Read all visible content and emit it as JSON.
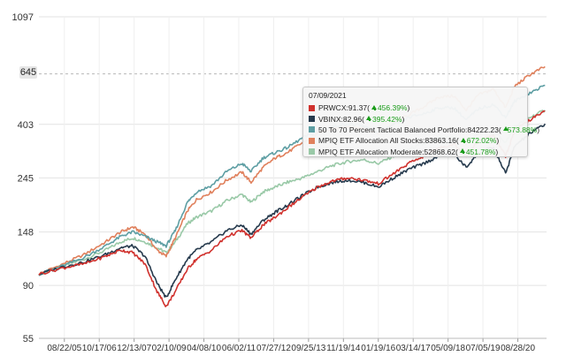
{
  "chart_data": {
    "type": "line",
    "y_scale": "log",
    "ylim": [
      55,
      1097
    ],
    "y_ticks": [
      "1097",
      "645",
      "403",
      "245",
      "148",
      "90",
      "55"
    ],
    "x_ticks": [
      "08/22/05",
      "10/17/06",
      "12/13/07",
      "02/10/09",
      "04/08/10",
      "06/02/11",
      "07/27/12",
      "09/25/13",
      "11/19/14",
      "01/19/16",
      "03/14/17",
      "05/09/18",
      "07/05/19",
      "08/28/20"
    ],
    "grid": true,
    "hover_value": "645",
    "tooltip": {
      "date": "07/09/2021",
      "rows": [
        {
          "name": "PRWCX",
          "value": "91.37",
          "change": "456.39%",
          "color": "#d0312d"
        },
        {
          "name": "VBINX",
          "value": "82.96",
          "change": "395.42%",
          "color": "#263a4d"
        },
        {
          "name": "50 To 70 Percent Tactical Balanced Portfolio",
          "value": "84222.23",
          "change": "573.88%",
          "color": "#5d9ea3"
        },
        {
          "name": "MPIQ ETF Allocation All Stocks",
          "value": "83863.16",
          "change": "672.02%",
          "color": "#e0805c"
        },
        {
          "name": "MPIQ ETF Allocation Moderate",
          "value": "52868.62",
          "change": "451.78%",
          "color": "#99c9a7"
        }
      ]
    },
    "series": [
      {
        "color": "#99c9a7",
        "points": [
          [
            2004.8,
            100
          ],
          [
            2005.6,
            108
          ],
          [
            2006.3,
            115
          ],
          [
            2007.0,
            125
          ],
          [
            2007.5,
            135
          ],
          [
            2007.9,
            140
          ],
          [
            2008.3,
            135
          ],
          [
            2008.7,
            128
          ],
          [
            2009.0,
            122
          ],
          [
            2009.3,
            135
          ],
          [
            2009.7,
            160
          ],
          [
            2010.0,
            170
          ],
          [
            2010.5,
            180
          ],
          [
            2011.0,
            198
          ],
          [
            2011.5,
            210
          ],
          [
            2011.8,
            195
          ],
          [
            2012.2,
            215
          ],
          [
            2012.6,
            225
          ],
          [
            2013.0,
            235
          ],
          [
            2013.5,
            245
          ],
          [
            2014.0,
            260
          ],
          [
            2014.5,
            275
          ],
          [
            2015.0,
            285
          ],
          [
            2015.5,
            290
          ],
          [
            2016.0,
            280
          ],
          [
            2016.5,
            300
          ],
          [
            2017.0,
            320
          ],
          [
            2017.5,
            335
          ],
          [
            2018.0,
            355
          ],
          [
            2018.5,
            360
          ],
          [
            2018.9,
            335
          ],
          [
            2019.3,
            370
          ],
          [
            2019.8,
            385
          ],
          [
            2020.2,
            340
          ],
          [
            2020.5,
            395
          ],
          [
            2021.0,
            430
          ],
          [
            2021.5,
            460
          ]
        ]
      },
      {
        "color": "#e0805c",
        "points": [
          [
            2004.8,
            100
          ],
          [
            2005.6,
            110
          ],
          [
            2006.3,
            120
          ],
          [
            2007.0,
            135
          ],
          [
            2007.5,
            148
          ],
          [
            2007.9,
            155
          ],
          [
            2008.3,
            145
          ],
          [
            2008.7,
            125
          ],
          [
            2009.0,
            118
          ],
          [
            2009.3,
            140
          ],
          [
            2009.7,
            180
          ],
          [
            2010.0,
            200
          ],
          [
            2010.5,
            215
          ],
          [
            2011.0,
            240
          ],
          [
            2011.5,
            258
          ],
          [
            2011.8,
            235
          ],
          [
            2012.2,
            270
          ],
          [
            2012.6,
            295
          ],
          [
            2013.0,
            310
          ],
          [
            2013.5,
            340
          ],
          [
            2014.0,
            370
          ],
          [
            2014.5,
            390
          ],
          [
            2015.0,
            395
          ],
          [
            2015.5,
            390
          ],
          [
            2016.0,
            370
          ],
          [
            2016.5,
            405
          ],
          [
            2017.0,
            440
          ],
          [
            2017.5,
            475
          ],
          [
            2018.0,
            520
          ],
          [
            2018.5,
            525
          ],
          [
            2018.9,
            460
          ],
          [
            2019.3,
            530
          ],
          [
            2019.8,
            560
          ],
          [
            2020.2,
            470
          ],
          [
            2020.5,
            575
          ],
          [
            2021.0,
            640
          ],
          [
            2021.5,
            690
          ]
        ]
      },
      {
        "color": "#5d9ea3",
        "points": [
          [
            2004.8,
            100
          ],
          [
            2005.6,
            108
          ],
          [
            2006.3,
            117
          ],
          [
            2007.0,
            130
          ],
          [
            2007.5,
            142
          ],
          [
            2007.9,
            148
          ],
          [
            2008.3,
            142
          ],
          [
            2008.7,
            135
          ],
          [
            2009.0,
            130
          ],
          [
            2009.3,
            150
          ],
          [
            2009.7,
            195
          ],
          [
            2010.0,
            215
          ],
          [
            2010.5,
            228
          ],
          [
            2011.0,
            260
          ],
          [
            2011.5,
            280
          ],
          [
            2011.8,
            260
          ],
          [
            2012.2,
            295
          ],
          [
            2012.6,
            310
          ],
          [
            2013.0,
            325
          ],
          [
            2013.5,
            355
          ],
          [
            2014.0,
            380
          ],
          [
            2014.5,
            395
          ],
          [
            2015.0,
            405
          ],
          [
            2015.5,
            395
          ],
          [
            2016.0,
            375
          ],
          [
            2016.5,
            400
          ],
          [
            2017.0,
            430
          ],
          [
            2017.5,
            445
          ],
          [
            2018.0,
            470
          ],
          [
            2018.5,
            470
          ],
          [
            2018.9,
            420
          ],
          [
            2019.3,
            465
          ],
          [
            2019.8,
            485
          ],
          [
            2020.2,
            430
          ],
          [
            2020.5,
            500
          ],
          [
            2021.0,
            540
          ],
          [
            2021.5,
            580
          ]
        ]
      },
      {
        "color": "#263a4d",
        "points": [
          [
            2004.8,
            100
          ],
          [
            2005.6,
            107
          ],
          [
            2006.3,
            112
          ],
          [
            2007.0,
            120
          ],
          [
            2007.5,
            128
          ],
          [
            2007.9,
            130
          ],
          [
            2008.3,
            118
          ],
          [
            2008.7,
            92
          ],
          [
            2009.0,
            80
          ],
          [
            2009.3,
            95
          ],
          [
            2009.7,
            115
          ],
          [
            2010.0,
            125
          ],
          [
            2010.5,
            135
          ],
          [
            2011.0,
            150
          ],
          [
            2011.5,
            158
          ],
          [
            2011.8,
            145
          ],
          [
            2012.2,
            165
          ],
          [
            2012.6,
            178
          ],
          [
            2013.0,
            190
          ],
          [
            2013.5,
            208
          ],
          [
            2014.0,
            225
          ],
          [
            2014.5,
            235
          ],
          [
            2015.0,
            240
          ],
          [
            2015.5,
            235
          ],
          [
            2016.0,
            225
          ],
          [
            2016.5,
            245
          ],
          [
            2017.0,
            265
          ],
          [
            2017.5,
            280
          ],
          [
            2018.0,
            300
          ],
          [
            2018.5,
            305
          ],
          [
            2018.9,
            270
          ],
          [
            2019.3,
            310
          ],
          [
            2019.8,
            325
          ],
          [
            2020.2,
            255
          ],
          [
            2020.5,
            330
          ],
          [
            2021.0,
            370
          ],
          [
            2021.5,
            405
          ]
        ]
      },
      {
        "color": "#d0312d",
        "points": [
          [
            2004.8,
            100
          ],
          [
            2005.6,
            106
          ],
          [
            2006.3,
            110
          ],
          [
            2007.0,
            118
          ],
          [
            2007.5,
            125
          ],
          [
            2007.9,
            122
          ],
          [
            2008.3,
            110
          ],
          [
            2008.7,
            85
          ],
          [
            2009.0,
            74
          ],
          [
            2009.3,
            85
          ],
          [
            2009.7,
            105
          ],
          [
            2010.0,
            115
          ],
          [
            2010.5,
            125
          ],
          [
            2011.0,
            142
          ],
          [
            2011.5,
            150
          ],
          [
            2011.8,
            140
          ],
          [
            2012.2,
            158
          ],
          [
            2012.6,
            170
          ],
          [
            2013.0,
            185
          ],
          [
            2013.5,
            205
          ],
          [
            2014.0,
            225
          ],
          [
            2014.5,
            238
          ],
          [
            2015.0,
            245
          ],
          [
            2015.5,
            240
          ],
          [
            2016.0,
            232
          ],
          [
            2016.5,
            255
          ],
          [
            2017.0,
            280
          ],
          [
            2017.5,
            300
          ],
          [
            2018.0,
            325
          ],
          [
            2018.5,
            335
          ],
          [
            2018.9,
            300
          ],
          [
            2019.3,
            345
          ],
          [
            2019.8,
            365
          ],
          [
            2020.2,
            300
          ],
          [
            2020.5,
            380
          ],
          [
            2021.0,
            420
          ],
          [
            2021.5,
            455
          ]
        ]
      }
    ]
  }
}
